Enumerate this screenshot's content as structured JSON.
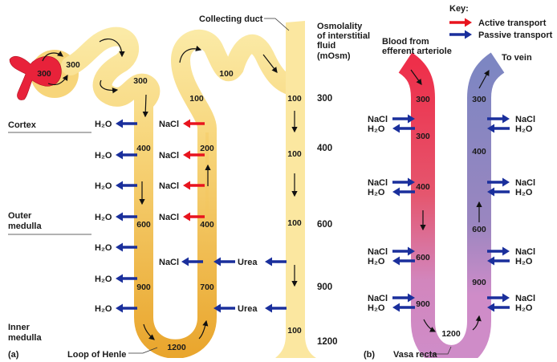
{
  "colors": {
    "active_transport": "#e8141e",
    "passive_transport": "#1a2f9c",
    "tubule_light": "#fbeaa6",
    "tubule_dark": "#e9a52c",
    "glomerulus": "#e8223a",
    "vasa_recta_arterial": "#ee2f4a",
    "vasa_recta_venous": "#7d86c2",
    "vasa_recta_bottom": "#cf8cc8"
  },
  "key": {
    "title": "Key:",
    "active": "Active transport",
    "passive": "Passive transport"
  },
  "panel_a": {
    "label": "(a)",
    "zones": {
      "cortex": "Cortex",
      "outer_1": "Outer",
      "outer_2": "medulla",
      "inner_1": "Inner",
      "inner_2": "medulla"
    },
    "loop_label": "Loop of Henle",
    "collecting_duct_label": "Collecting duct",
    "osmolality_header": [
      "Osmolality",
      "of interstitial",
      "fluid",
      "(mOsm)"
    ],
    "interstitial_values": [
      "300",
      "400",
      "600",
      "900",
      "1200"
    ],
    "glomerulus_value": "300",
    "capsule_value": "300",
    "proximal_value": "300",
    "distal_values": [
      "100",
      "100"
    ],
    "descending_values": [
      "400",
      "600",
      "900"
    ],
    "bottom_value": "1200",
    "ascending_values": [
      "200",
      "400",
      "700"
    ],
    "collecting_values": [
      "100",
      "100",
      "100",
      "100"
    ],
    "water": "H₂O",
    "nacl": "NaCl",
    "urea": "Urea"
  },
  "panel_b": {
    "label": "(b)",
    "vessel_label": "Vasa recta",
    "inflow_label": [
      "Blood from",
      "efferent arteriole"
    ],
    "outflow_label": "To vein",
    "descending_values": [
      "300",
      "300",
      "400",
      "600",
      "900"
    ],
    "bottom_value": "1200",
    "ascending_values": [
      "300",
      "400",
      "600",
      "900"
    ],
    "water": "H₂O",
    "nacl": "NaCl"
  }
}
